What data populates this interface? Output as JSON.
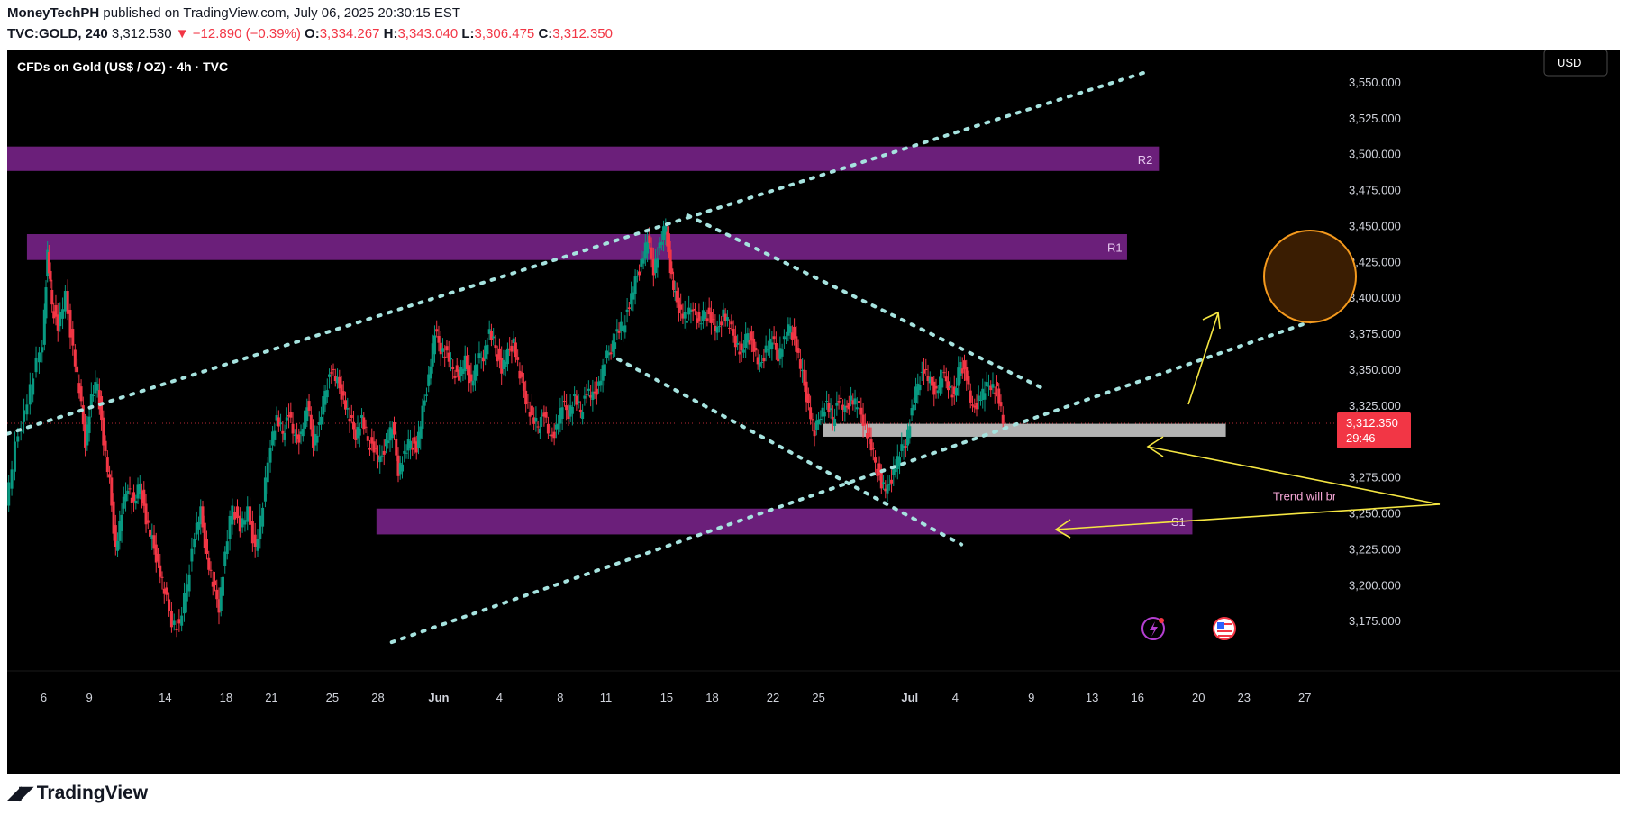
{
  "header": {
    "author": "MoneyTechPH",
    "published_text": "published on TradingView.com, July 06, 2025 20:30:15 EST",
    "symbol": "TVC:GOLD, 240",
    "last": "3,312.530",
    "change": "▼ −12.890 (−0.39%)",
    "o_label": "O:",
    "o_value": "3,334.267",
    "h_label": "H:",
    "h_value": "3,343.040",
    "l_label": "L:",
    "l_value": "3,306.475",
    "c_label": "C:",
    "c_value": "3,312.350"
  },
  "chart_title": "CFDs on Gold (US$ / OZ) · 4h · TVC",
  "currency_button": "USD",
  "brand": "TradingView",
  "colors": {
    "up": "#089981",
    "down": "#f23645",
    "zone": "#6b1f7a",
    "trendline": "#a6e3df",
    "arrow": "#f5e642",
    "highlight_circle": "#f59a1d",
    "price_box": "#f23645",
    "grey_zone": "#b2b2b2"
  },
  "chart_data": {
    "type": "candlestick",
    "title": "CFDs on Gold (US$ / OZ) · 4h · TVC",
    "ylim": [
      3150,
      3575
    ],
    "y_ticks": [
      "3,175.000",
      "3,200.000",
      "3,225.000",
      "3,250.000",
      "3,275.000",
      "3,300.000",
      "3,325.000",
      "3,350.000",
      "3,375.000",
      "3,400.000",
      "3,425.000",
      "3,450.000",
      "3,475.000",
      "3,500.000",
      "3,525.000",
      "3,550.000"
    ],
    "y_tick_values": [
      3175,
      3200,
      3225,
      3250,
      3275,
      3300,
      3325,
      3350,
      3375,
      3400,
      3425,
      3450,
      3475,
      3500,
      3525,
      3550
    ],
    "x_ticks": [
      {
        "label": "6",
        "x": 0.0
      },
      {
        "label": "9",
        "x": 3.0
      },
      {
        "label": "14",
        "x": 8.0
      },
      {
        "label": "18",
        "x": 12.0
      },
      {
        "label": "21",
        "x": 15.0
      },
      {
        "label": "25",
        "x": 19.0
      },
      {
        "label": "28",
        "x": 22.0
      },
      {
        "label": "Jun",
        "x": 26.0
      },
      {
        "label": "4",
        "x": 30.0
      },
      {
        "label": "8",
        "x": 34.0
      },
      {
        "label": "11",
        "x": 37.0
      },
      {
        "label": "15",
        "x": 41.0
      },
      {
        "label": "18",
        "x": 44.0
      },
      {
        "label": "22",
        "x": 48.0
      },
      {
        "label": "25",
        "x": 51.0
      },
      {
        "label": "Jul",
        "x": 57.0
      },
      {
        "label": "4",
        "x": 60.0
      },
      {
        "label": "9",
        "x": 65.0
      },
      {
        "label": "13",
        "x": 69.0
      },
      {
        "label": "16",
        "x": 72.0
      },
      {
        "label": "20",
        "x": 76.0
      },
      {
        "label": "23",
        "x": 79.0
      },
      {
        "label": "27",
        "x": 83.0
      }
    ],
    "x_range": [
      -2.4,
      85.0
    ],
    "price_series": [
      [
        -2.4,
        3255
      ],
      [
        -1.8,
        3295
      ],
      [
        -1.2,
        3320
      ],
      [
        -0.6,
        3345
      ],
      [
        0.0,
        3370
      ],
      [
        0.3,
        3430
      ],
      [
        0.6,
        3395
      ],
      [
        1.0,
        3380
      ],
      [
        1.5,
        3400
      ],
      [
        2.0,
        3365
      ],
      [
        2.4,
        3335
      ],
      [
        2.8,
        3300
      ],
      [
        3.2,
        3330
      ],
      [
        3.6,
        3340
      ],
      [
        4.0,
        3300
      ],
      [
        4.4,
        3270
      ],
      [
        4.8,
        3225
      ],
      [
        5.2,
        3250
      ],
      [
        5.6,
        3270
      ],
      [
        6.0,
        3255
      ],
      [
        6.4,
        3270
      ],
      [
        6.8,
        3245
      ],
      [
        7.2,
        3230
      ],
      [
        7.6,
        3215
      ],
      [
        8.0,
        3195
      ],
      [
        8.5,
        3175
      ],
      [
        9.0,
        3170
      ],
      [
        9.5,
        3200
      ],
      [
        10.0,
        3235
      ],
      [
        10.4,
        3250
      ],
      [
        10.8,
        3220
      ],
      [
        11.2,
        3200
      ],
      [
        11.6,
        3185
      ],
      [
        12.0,
        3220
      ],
      [
        12.5,
        3255
      ],
      [
        13.0,
        3240
      ],
      [
        13.5,
        3250
      ],
      [
        14.0,
        3225
      ],
      [
        14.5,
        3255
      ],
      [
        15.0,
        3300
      ],
      [
        15.4,
        3315
      ],
      [
        15.8,
        3305
      ],
      [
        16.2,
        3320
      ],
      [
        16.6,
        3300
      ],
      [
        17.0,
        3305
      ],
      [
        17.4,
        3325
      ],
      [
        17.8,
        3300
      ],
      [
        18.2,
        3310
      ],
      [
        18.6,
        3335
      ],
      [
        19.0,
        3350
      ],
      [
        19.4,
        3340
      ],
      [
        19.8,
        3330
      ],
      [
        20.2,
        3315
      ],
      [
        20.6,
        3305
      ],
      [
        21.0,
        3315
      ],
      [
        21.4,
        3300
      ],
      [
        21.8,
        3295
      ],
      [
        22.2,
        3285
      ],
      [
        22.6,
        3300
      ],
      [
        23.0,
        3310
      ],
      [
        23.4,
        3280
      ],
      [
        23.8,
        3290
      ],
      [
        24.2,
        3300
      ],
      [
        24.6,
        3295
      ],
      [
        25.0,
        3320
      ],
      [
        25.4,
        3345
      ],
      [
        25.8,
        3375
      ],
      [
        26.2,
        3365
      ],
      [
        26.6,
        3360
      ],
      [
        27.0,
        3350
      ],
      [
        27.4,
        3345
      ],
      [
        27.8,
        3355
      ],
      [
        28.2,
        3340
      ],
      [
        28.6,
        3355
      ],
      [
        29.0,
        3360
      ],
      [
        29.4,
        3375
      ],
      [
        29.8,
        3365
      ],
      [
        30.2,
        3350
      ],
      [
        30.6,
        3360
      ],
      [
        31.0,
        3370
      ],
      [
        31.4,
        3345
      ],
      [
        31.8,
        3330
      ],
      [
        32.2,
        3315
      ],
      [
        32.6,
        3310
      ],
      [
        33.0,
        3320
      ],
      [
        33.4,
        3300
      ],
      [
        33.8,
        3310
      ],
      [
        34.2,
        3325
      ],
      [
        34.6,
        3320
      ],
      [
        35.0,
        3330
      ],
      [
        35.4,
        3320
      ],
      [
        35.8,
        3335
      ],
      [
        36.2,
        3330
      ],
      [
        36.6,
        3340
      ],
      [
        37.0,
        3355
      ],
      [
        37.4,
        3365
      ],
      [
        37.8,
        3375
      ],
      [
        38.2,
        3380
      ],
      [
        38.6,
        3395
      ],
      [
        39.0,
        3410
      ],
      [
        39.4,
        3425
      ],
      [
        39.8,
        3440
      ],
      [
        40.2,
        3420
      ],
      [
        40.6,
        3435
      ],
      [
        41.0,
        3450
      ],
      [
        41.3,
        3420
      ],
      [
        41.6,
        3400
      ],
      [
        42.0,
        3390
      ],
      [
        42.4,
        3385
      ],
      [
        42.8,
        3395
      ],
      [
        43.2,
        3380
      ],
      [
        43.6,
        3390
      ],
      [
        44.0,
        3385
      ],
      [
        44.4,
        3375
      ],
      [
        44.8,
        3390
      ],
      [
        45.2,
        3380
      ],
      [
        45.6,
        3370
      ],
      [
        46.0,
        3360
      ],
      [
        46.4,
        3375
      ],
      [
        46.8,
        3365
      ],
      [
        47.2,
        3350
      ],
      [
        47.6,
        3365
      ],
      [
        48.0,
        3370
      ],
      [
        48.4,
        3360
      ],
      [
        48.8,
        3370
      ],
      [
        49.2,
        3380
      ],
      [
        49.6,
        3365
      ],
      [
        50.0,
        3345
      ],
      [
        50.4,
        3325
      ],
      [
        50.8,
        3305
      ],
      [
        51.2,
        3320
      ],
      [
        51.6,
        3325
      ],
      [
        52.0,
        3315
      ],
      [
        52.4,
        3330
      ],
      [
        52.8,
        3320
      ],
      [
        53.2,
        3330
      ],
      [
        53.6,
        3325
      ],
      [
        54.0,
        3315
      ],
      [
        54.4,
        3300
      ],
      [
        54.8,
        3285
      ],
      [
        55.2,
        3270
      ],
      [
        55.6,
        3265
      ],
      [
        56.0,
        3280
      ],
      [
        56.4,
        3290
      ],
      [
        56.8,
        3300
      ],
      [
        57.2,
        3320
      ],
      [
        57.6,
        3340
      ],
      [
        58.0,
        3350
      ],
      [
        58.4,
        3340
      ],
      [
        58.8,
        3335
      ],
      [
        59.2,
        3345
      ],
      [
        59.6,
        3340
      ],
      [
        60.0,
        3330
      ],
      [
        60.4,
        3355
      ],
      [
        60.8,
        3345
      ],
      [
        61.2,
        3320
      ],
      [
        61.6,
        3330
      ],
      [
        62.0,
        3335
      ],
      [
        62.4,
        3340
      ],
      [
        62.8,
        3335
      ],
      [
        63.2,
        3312
      ]
    ],
    "zones": [
      {
        "label": "R2",
        "x0": -2.4,
        "x1": 73.4,
        "y_low": 3488,
        "y_high": 3505
      },
      {
        "label": "R1",
        "x0": -1.1,
        "x1": 71.3,
        "y_low": 3426,
        "y_high": 3444
      },
      {
        "label": "S1",
        "x0": 21.9,
        "x1": 75.6,
        "y_low": 3235,
        "y_high": 3253
      },
      {
        "label": "",
        "x0": 51.3,
        "x1": 77.8,
        "y_low": 3303,
        "y_high": 3312
      }
    ],
    "trendlines": [
      {
        "from": [
          -2.4,
          3305
        ],
        "to": [
          72.6,
          3557
        ]
      },
      {
        "from": [
          22.9,
          3160
        ],
        "to": [
          84.7,
          3388
        ]
      },
      {
        "from": [
          42.4,
          3457
        ],
        "to": [
          65.7,
          3337
        ]
      },
      {
        "from": [
          37.8,
          3357
        ],
        "to": [
          60.4,
          3228
        ]
      }
    ],
    "last_price_label": "3,312.350",
    "countdown": "29:46",
    "last_price": 3312.35,
    "annotations": [
      {
        "text": "R2",
        "x": 72.0,
        "y": 3496
      },
      {
        "text": "R1",
        "x": 70.0,
        "y": 3435
      },
      {
        "text": "S1",
        "x": 74.2,
        "y": 3244
      },
      {
        "text": "Trend will br",
        "x": 80.9,
        "y": 3262
      }
    ]
  }
}
